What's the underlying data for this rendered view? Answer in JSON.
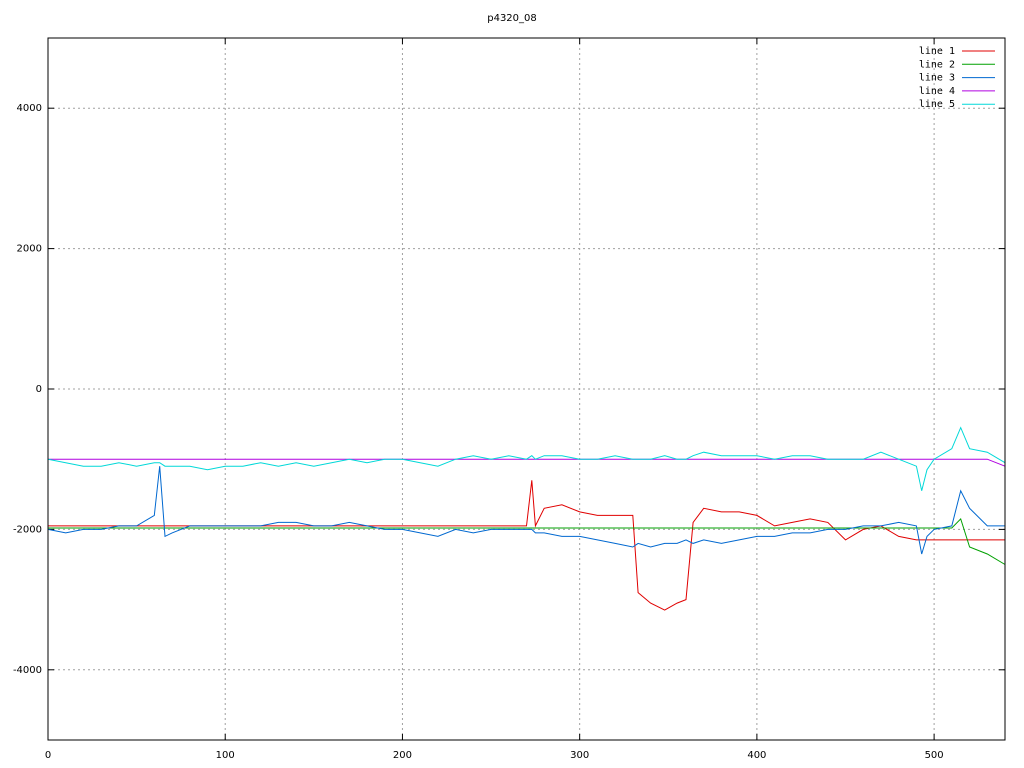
{
  "chart_data": {
    "type": "line",
    "title": "p4320_08",
    "x": [
      0,
      10,
      20,
      30,
      40,
      50,
      60,
      63,
      66,
      70,
      80,
      90,
      100,
      110,
      120,
      130,
      140,
      150,
      160,
      170,
      180,
      190,
      200,
      210,
      220,
      230,
      240,
      250,
      260,
      270,
      273,
      275,
      280,
      290,
      300,
      310,
      320,
      330,
      333,
      340,
      348,
      355,
      360,
      364,
      370,
      380,
      390,
      400,
      410,
      420,
      430,
      440,
      450,
      460,
      470,
      480,
      490,
      493,
      496,
      500,
      510,
      515,
      520,
      530,
      540
    ],
    "xlim": [
      0,
      540
    ],
    "xticks": [
      0,
      100,
      200,
      300,
      400,
      500
    ],
    "ylim": [
      -5000,
      5000
    ],
    "yticks": [
      -4000,
      -2000,
      0,
      2000,
      4000
    ],
    "grid": true,
    "legend": "top-right",
    "series": [
      {
        "name": "line 1",
        "color": "#e00000",
        "values": [
          -1950,
          -1950,
          -1950,
          -1950,
          -1950,
          -1950,
          -1950,
          -1950,
          -1950,
          -1950,
          -1950,
          -1950,
          -1950,
          -1950,
          -1950,
          -1950,
          -1950,
          -1950,
          -1950,
          -1950,
          -1950,
          -1950,
          -1950,
          -1950,
          -1950,
          -1950,
          -1950,
          -1950,
          -1950,
          -1950,
          -1300,
          -1950,
          -1700,
          -1650,
          -1750,
          -1800,
          -1800,
          -1800,
          -2900,
          -3050,
          -3150,
          -3050,
          -3000,
          -1900,
          -1700,
          -1750,
          -1750,
          -1800,
          -1950,
          -1900,
          -1850,
          -1900,
          -2150,
          -2000,
          -1950,
          -2100,
          -2150,
          -2150,
          -2150,
          -2150,
          -2150,
          -2150,
          -2150,
          -2150,
          -2150
        ]
      },
      {
        "name": "line 2",
        "color": "#00a000",
        "values": [
          -1980,
          -1980,
          -1980,
          -1980,
          -1980,
          -1980,
          -1980,
          -1980,
          -1980,
          -1980,
          -1980,
          -1980,
          -1980,
          -1980,
          -1980,
          -1980,
          -1980,
          -1980,
          -1980,
          -1980,
          -1980,
          -1980,
          -1980,
          -1980,
          -1980,
          -1980,
          -1980,
          -1980,
          -1980,
          -1980,
          -1980,
          -1980,
          -1980,
          -1980,
          -1980,
          -1980,
          -1980,
          -1980,
          -1980,
          -1980,
          -1980,
          -1980,
          -1980,
          -1980,
          -1980,
          -1980,
          -1980,
          -1980,
          -1980,
          -1980,
          -1980,
          -1980,
          -1980,
          -1980,
          -1980,
          -1980,
          -1980,
          -1980,
          -1980,
          -1980,
          -1980,
          -1850,
          -2250,
          -2350,
          -2500
        ]
      },
      {
        "name": "line 3",
        "color": "#0068d0",
        "values": [
          -2000,
          -2050,
          -2000,
          -2000,
          -1950,
          -1950,
          -1800,
          -1100,
          -2100,
          -2050,
          -1950,
          -1950,
          -1950,
          -1950,
          -1950,
          -1900,
          -1900,
          -1950,
          -1950,
          -1900,
          -1950,
          -2000,
          -2000,
          -2050,
          -2100,
          -2000,
          -2050,
          -2000,
          -2000,
          -2000,
          -2000,
          -2050,
          -2050,
          -2100,
          -2100,
          -2150,
          -2200,
          -2250,
          -2200,
          -2250,
          -2200,
          -2200,
          -2150,
          -2200,
          -2150,
          -2200,
          -2150,
          -2100,
          -2100,
          -2050,
          -2050,
          -2000,
          -2000,
          -1950,
          -1950,
          -1900,
          -1950,
          -2350,
          -2100,
          -2000,
          -1950,
          -1450,
          -1700,
          -1950,
          -1950
        ]
      },
      {
        "name": "line 4",
        "color": "#b000e0",
        "values": [
          -1000,
          -1000,
          -1000,
          -1000,
          -1000,
          -1000,
          -1000,
          -1000,
          -1000,
          -1000,
          -1000,
          -1000,
          -1000,
          -1000,
          -1000,
          -1000,
          -1000,
          -1000,
          -1000,
          -1000,
          -1000,
          -1000,
          -1000,
          -1000,
          -1000,
          -1000,
          -1000,
          -1000,
          -1000,
          -1000,
          -1000,
          -1000,
          -1000,
          -1000,
          -1000,
          -1000,
          -1000,
          -1000,
          -1000,
          -1000,
          -1000,
          -1000,
          -1000,
          -1000,
          -1000,
          -1000,
          -1000,
          -1000,
          -1000,
          -1000,
          -1000,
          -1000,
          -1000,
          -1000,
          -1000,
          -1000,
          -1000,
          -1000,
          -1000,
          -1000,
          -1000,
          -1000,
          -1000,
          -1000,
          -1100
        ]
      },
      {
        "name": "line 5",
        "color": "#00d8d8",
        "values": [
          -1000,
          -1050,
          -1100,
          -1100,
          -1050,
          -1100,
          -1050,
          -1050,
          -1100,
          -1100,
          -1100,
          -1150,
          -1100,
          -1100,
          -1050,
          -1100,
          -1050,
          -1100,
          -1050,
          -1000,
          -1050,
          -1000,
          -1000,
          -1050,
          -1100,
          -1000,
          -950,
          -1000,
          -950,
          -1000,
          -950,
          -1000,
          -950,
          -950,
          -1000,
          -1000,
          -950,
          -1000,
          -1000,
          -1000,
          -950,
          -1000,
          -1000,
          -950,
          -900,
          -950,
          -950,
          -950,
          -1000,
          -950,
          -950,
          -1000,
          -1000,
          -1000,
          -900,
          -1000,
          -1100,
          -1450,
          -1150,
          -1000,
          -850,
          -550,
          -850,
          -900,
          -1050
        ]
      }
    ]
  }
}
